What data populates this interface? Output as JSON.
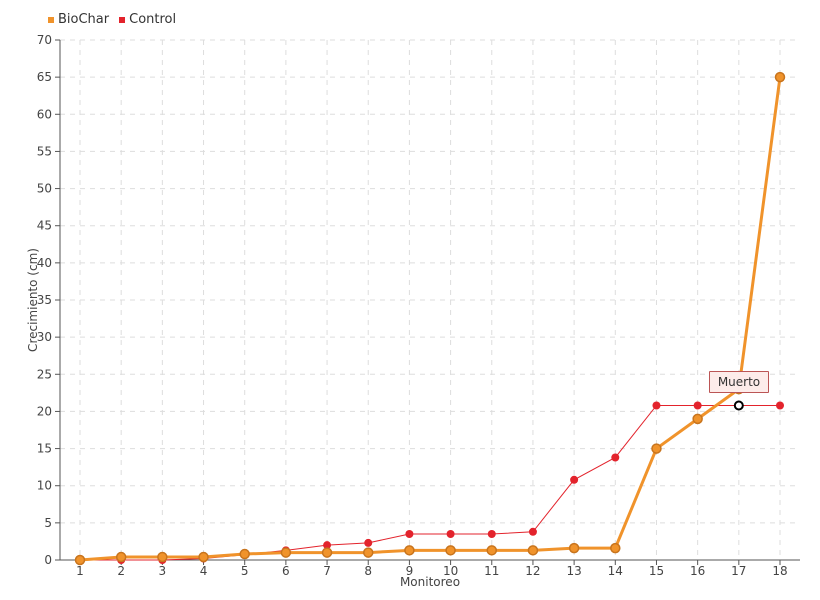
{
  "chart_data": {
    "type": "line",
    "x": [
      1,
      2,
      3,
      4,
      5,
      6,
      7,
      8,
      9,
      10,
      11,
      12,
      13,
      14,
      15,
      16,
      17,
      18
    ],
    "series": [
      {
        "name": "BioChar",
        "color": "#f0932b",
        "values": [
          0,
          0.4,
          0.4,
          0.4,
          0.8,
          1.0,
          1.0,
          1.0,
          1.3,
          1.3,
          1.3,
          1.3,
          1.6,
          1.6,
          15,
          19,
          23,
          65
        ]
      },
      {
        "name": "Control",
        "color": "#e3232c",
        "values": [
          0,
          0,
          0,
          0.2,
          0.7,
          1.3,
          2.0,
          2.3,
          3.5,
          3.5,
          3.5,
          3.8,
          10.8,
          13.8,
          20.8,
          20.8,
          20.8,
          20.8
        ]
      }
    ],
    "xlabel": "Monitoreo",
    "ylabel": "Crecimiento (cm)",
    "ylim": [
      0,
      70
    ],
    "yticks": [
      0,
      5,
      10,
      15,
      20,
      25,
      30,
      35,
      40,
      45,
      50,
      55,
      60,
      65,
      70
    ],
    "grid": true,
    "legend": "top-left",
    "annotation": {
      "text": "Muerto",
      "series": "Control",
      "x": 17,
      "y": 20.8
    }
  }
}
